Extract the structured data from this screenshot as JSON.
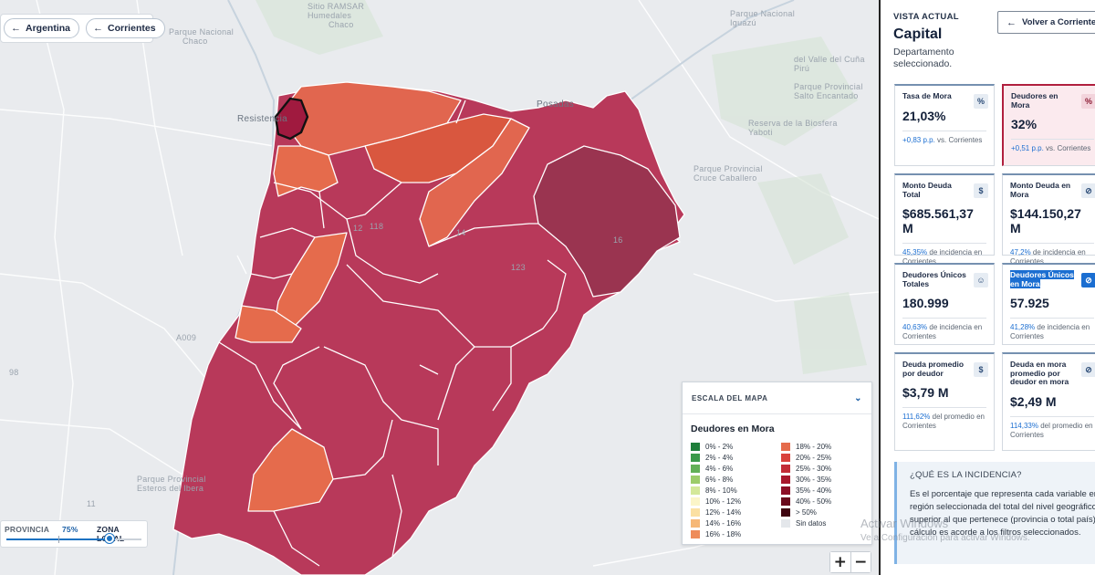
{
  "breadcrumb": {
    "items": [
      {
        "label": "Argentina"
      },
      {
        "label": "Corrientes"
      }
    ]
  },
  "map": {
    "labels": [
      "Sitio RAMSAR",
      "Humedales",
      "Chaco",
      "Parque Nacional",
      "Chaco",
      "Resistencia",
      "Posadas",
      "Parque Provincial",
      "Salto Encantado",
      "del Valle del Cuña Pirú",
      "Parque Provincial",
      "Cruce Caballero",
      "Parque Nacional",
      "Iguazú",
      "Reserva de la Biosfera",
      "Yaboti",
      "A009",
      "98",
      "Parque Provincial",
      "Esteros del Ibera",
      "11",
      "12",
      "14",
      "16",
      "118",
      "123"
    ],
    "region_fill": "#b8395a",
    "highlight_fill": "#a01a3f",
    "dark_region_fill": "#9a3450",
    "orange_fill": "#e1664f"
  },
  "slider": {
    "left_label": "PROVINCIA",
    "value_label": "75%",
    "right_label": "ZONA LOCAL",
    "value": 0.75
  },
  "zoom": {
    "plus": "+",
    "minus": "−"
  },
  "legend": {
    "header": "ESCALA DEL MAPA",
    "title": "Deudores en Mora",
    "left": [
      {
        "label": "0% - 2%",
        "color": "#1e7e3a"
      },
      {
        "label": "2% - 4%",
        "color": "#3b9a4a"
      },
      {
        "label": "4% - 6%",
        "color": "#62b057"
      },
      {
        "label": "6% - 8%",
        "color": "#9ccc6a"
      },
      {
        "label": "8% - 10%",
        "color": "#d4e89a"
      },
      {
        "label": "10% - 12%",
        "color": "#fbf5c8"
      },
      {
        "label": "12% - 14%",
        "color": "#fbe0a2"
      },
      {
        "label": "14% - 16%",
        "color": "#f6b877"
      },
      {
        "label": "16% - 18%",
        "color": "#ee8c5a"
      }
    ],
    "right": [
      {
        "label": "18% - 20%",
        "color": "#e56b4c"
      },
      {
        "label": "20% - 25%",
        "color": "#d9423c"
      },
      {
        "label": "25% - 30%",
        "color": "#c22c36"
      },
      {
        "label": "30% - 35%",
        "color": "#a8172c"
      },
      {
        "label": "35% - 40%",
        "color": "#8c0e26"
      },
      {
        "label": "40% - 50%",
        "color": "#6a0a1c"
      },
      {
        "label": "> 50%",
        "color": "#3f0510"
      },
      {
        "label": "Sin datos",
        "color": "#e4e7eb"
      }
    ]
  },
  "panel": {
    "vista": "VISTA ACTUAL",
    "place": "Capital",
    "subtitle": "Departamento seleccionado.",
    "back_label": "Volver a Corrientes",
    "cards": [
      {
        "title": "Tasa de Mora",
        "value": "21,03%",
        "note_hl": "+0,83 p.p.",
        "note": " vs. Corrientes",
        "icon": "%"
      },
      {
        "title": "Deudores en Mora",
        "value": "32%",
        "note_hl": "+0,51 p.p.",
        "note": " vs. Corrientes",
        "icon": "%"
      },
      {
        "title": "Monto Deuda Total",
        "value": "$685.561,37 M",
        "note_hl": "45,35%",
        "note": " de incidencia en Corrientes",
        "icon": "$"
      },
      {
        "title": "Monto Deuda en Mora",
        "value": "$144.150,27 M",
        "note_hl": "47,2%",
        "note": " de incidencia en Corrientes",
        "icon": "⊘"
      },
      {
        "title": "Deudores Únicos Totales",
        "value": "180.999",
        "note_hl": "40,63%",
        "note": " de incidencia en Corrientes",
        "icon": "☺"
      },
      {
        "title": "Deudores Únicos en Mora",
        "value": "57.925",
        "note_hl": "41,28%",
        "note": " de incidencia en Corrientes",
        "icon": "⊘"
      },
      {
        "title": "Deuda promedio por deudor",
        "value": "$3,79 M",
        "note_hl": "111,62%",
        "note": " del promedio en Corrientes",
        "icon": "$"
      },
      {
        "title": "Deuda en mora promedio por deudor en mora",
        "value": "$2,49 M",
        "note_hl": "114,33%",
        "note": " del promedio en Corrientes",
        "icon": "⊘"
      }
    ],
    "info_q": "¿QUÉ ES LA INCIDENCIA?",
    "info_text": "Es el porcentaje que representa cada variable en la región seleccionada del total del nivel geográfico superior al que pertenece (provincia o total país). El cálculo es acorde a los filtros seleccionados."
  },
  "watermark": {
    "line1": "Activar Windows",
    "line2": "Ve a Configuración para activar Windows."
  }
}
